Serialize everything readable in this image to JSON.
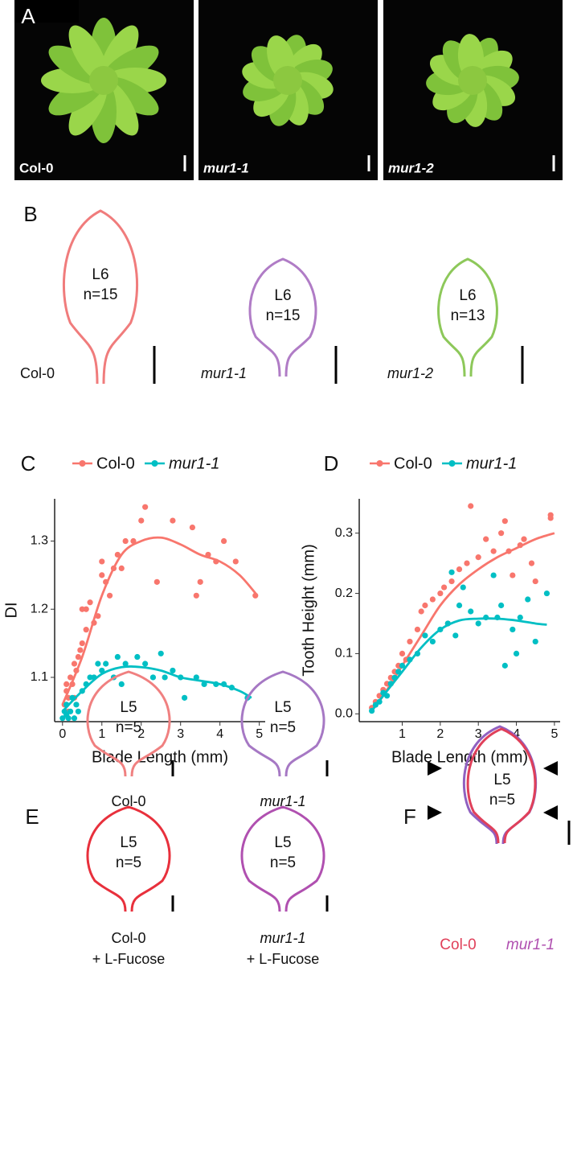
{
  "panels": {
    "A": {
      "label": "A",
      "photos": [
        "Col-0",
        "mur1-1",
        "mur1-2"
      ]
    },
    "B": {
      "label": "B",
      "leaves": [
        {
          "genotype": "Col-0",
          "leaf": "L6",
          "n": "n=15"
        },
        {
          "genotype": "mur1-1",
          "leaf": "L6",
          "n": "n=15"
        },
        {
          "genotype": "mur1-2",
          "leaf": "L6",
          "n": "n=13"
        }
      ]
    },
    "E": {
      "label": "E",
      "leaves": [
        {
          "genotype": "Col-0",
          "leaf": "L5",
          "n": "n=5"
        },
        {
          "genotype": "mur1-1",
          "leaf": "L5",
          "n": "n=5"
        },
        {
          "genotype": "Col-0",
          "treatment": "+ L-Fucose",
          "leaf": "L5",
          "n": "n=5"
        },
        {
          "genotype": "mur1-1",
          "treatment": "+ L-Fucose",
          "leaf": "L5",
          "n": "n=5"
        }
      ]
    },
    "F": {
      "label": "F",
      "leaf": "L5",
      "n": "n=5",
      "genotypes": [
        "Col-0",
        "mur1-1"
      ]
    }
  },
  "chart_data": [
    {
      "type": "scatter",
      "panel": "C",
      "xlabel": "Blade Length (mm)",
      "ylabel": "DI",
      "xlim": [
        -0.2,
        5.15
      ],
      "ylim": [
        1.035,
        1.362
      ],
      "xticks": [
        0,
        1,
        2,
        3,
        4,
        5
      ],
      "yticks": [
        1.1,
        1.2,
        1.3
      ],
      "series": [
        {
          "name": "Col-0",
          "color": "#f8766d",
          "x": [
            0.05,
            0.1,
            0.1,
            0.15,
            0.2,
            0.25,
            0.3,
            0.35,
            0.4,
            0.45,
            0.5,
            0.5,
            0.6,
            0.6,
            0.7,
            0.8,
            0.9,
            1.0,
            1.0,
            1.1,
            1.2,
            1.3,
            1.4,
            1.5,
            1.6,
            1.8,
            2.0,
            2.1,
            2.4,
            2.8,
            3.3,
            3.4,
            3.5,
            3.7,
            3.9,
            4.1,
            4.4,
            4.9,
            0.3,
            0.15
          ],
          "values": [
            1.06,
            1.08,
            1.09,
            1.07,
            1.1,
            1.09,
            1.12,
            1.11,
            1.13,
            1.14,
            1.15,
            1.2,
            1.2,
            1.17,
            1.21,
            1.18,
            1.19,
            1.25,
            1.27,
            1.24,
            1.22,
            1.26,
            1.28,
            1.26,
            1.3,
            1.3,
            1.33,
            1.35,
            1.24,
            1.33,
            1.32,
            1.22,
            1.24,
            1.28,
            1.27,
            1.3,
            1.27,
            1.22,
            1.07,
            1.05
          ],
          "fit": {
            "x": [
              0,
              0.5,
              1,
              1.5,
              2,
              2.5,
              3,
              3.5,
              4,
              4.5,
              4.95
            ],
            "values": [
              1.06,
              1.13,
              1.22,
              1.28,
              1.3,
              1.305,
              1.295,
              1.28,
              1.27,
              1.25,
              1.22
            ]
          }
        },
        {
          "name": "mur1-1",
          "color": "#00bfc4",
          "x": [
            0,
            0.05,
            0.1,
            0.15,
            0.2,
            0.25,
            0.3,
            0.35,
            0.4,
            0.5,
            0.6,
            0.7,
            0.8,
            0.9,
            1.0,
            1.1,
            1.3,
            1.4,
            1.5,
            1.6,
            1.9,
            2.1,
            2.3,
            2.5,
            2.6,
            2.8,
            3.0,
            3.1,
            3.4,
            3.6,
            3.9,
            4.1,
            4.3,
            4.7,
            0.1
          ],
          "values": [
            1.04,
            1.05,
            1.06,
            1.04,
            1.05,
            1.07,
            1.04,
            1.06,
            1.05,
            1.08,
            1.09,
            1.1,
            1.1,
            1.12,
            1.11,
            1.12,
            1.1,
            1.13,
            1.09,
            1.12,
            1.13,
            1.12,
            1.1,
            1.135,
            1.1,
            1.11,
            1.1,
            1.07,
            1.1,
            1.09,
            1.09,
            1.09,
            1.085,
            1.07,
            1.045
          ],
          "fit": {
            "x": [
              0,
              0.5,
              1,
              1.5,
              2,
              2.5,
              3,
              3.5,
              4,
              4.5,
              4.8
            ],
            "values": [
              1.05,
              1.08,
              1.105,
              1.115,
              1.115,
              1.11,
              1.1,
              1.095,
              1.09,
              1.08,
              1.07
            ]
          }
        }
      ]
    },
    {
      "type": "scatter",
      "panel": "D",
      "xlabel": "Blade Length (mm)",
      "ylabel": "Tooth Height (mm)",
      "xlim": [
        -0.13,
        5.15
      ],
      "ylim": [
        -0.013,
        0.357
      ],
      "xticks": [
        1,
        2,
        3,
        4,
        5
      ],
      "yticks": [
        {
          "value": 0,
          "label": "0.0"
        },
        0.1,
        0.2,
        0.3
      ],
      "series": [
        {
          "name": "Col-0",
          "color": "#f8766d",
          "x": [
            0.2,
            0.3,
            0.4,
            0.5,
            0.6,
            0.7,
            0.8,
            0.9,
            1.0,
            1.1,
            1.2,
            1.4,
            1.5,
            1.6,
            1.8,
            2.0,
            2.1,
            2.3,
            2.5,
            2.7,
            2.8,
            3.0,
            3.2,
            3.4,
            3.6,
            3.7,
            3.9,
            4.1,
            4.2,
            4.4,
            4.5,
            4.9,
            4.9,
            3.8,
            2.2
          ],
          "values": [
            0.01,
            0.02,
            0.03,
            0.04,
            0.05,
            0.06,
            0.07,
            0.08,
            0.1,
            0.09,
            0.12,
            0.14,
            0.17,
            0.18,
            0.19,
            0.2,
            0.21,
            0.22,
            0.24,
            0.25,
            0.345,
            0.26,
            0.29,
            0.27,
            0.3,
            0.32,
            0.23,
            0.28,
            0.29,
            0.25,
            0.22,
            0.33,
            0.325,
            0.27,
            0.15
          ],
          "fit": {
            "x": [
              0.2,
              0.5,
              1,
              1.5,
              2,
              2.5,
              3,
              3.5,
              4,
              4.5,
              5
            ],
            "values": [
              0.005,
              0.03,
              0.08,
              0.13,
              0.18,
              0.215,
              0.24,
              0.26,
              0.275,
              0.29,
              0.3
            ]
          }
        },
        {
          "name": "mur1-1",
          "color": "#00bfc4",
          "x": [
            0.2,
            0.3,
            0.4,
            0.5,
            0.6,
            0.7,
            0.8,
            0.9,
            1.0,
            1.2,
            1.4,
            1.6,
            1.8,
            2.0,
            2.2,
            2.4,
            2.5,
            2.6,
            2.8,
            3.0,
            3.2,
            3.4,
            3.5,
            3.6,
            3.7,
            3.9,
            4.0,
            4.1,
            4.3,
            4.5,
            4.8,
            2.3
          ],
          "values": [
            0.005,
            0.015,
            0.02,
            0.035,
            0.03,
            0.05,
            0.06,
            0.07,
            0.08,
            0.09,
            0.1,
            0.13,
            0.12,
            0.14,
            0.15,
            0.13,
            0.18,
            0.21,
            0.17,
            0.15,
            0.16,
            0.23,
            0.16,
            0.18,
            0.08,
            0.14,
            0.1,
            0.16,
            0.19,
            0.12,
            0.2,
            0.235
          ],
          "fit": {
            "x": [
              0.2,
              0.5,
              1,
              1.5,
              2,
              2.5,
              3,
              3.5,
              4,
              4.5,
              4.8
            ],
            "values": [
              0.005,
              0.03,
              0.07,
              0.11,
              0.14,
              0.155,
              0.158,
              0.158,
              0.155,
              0.15,
              0.148
            ]
          }
        }
      ]
    }
  ]
}
